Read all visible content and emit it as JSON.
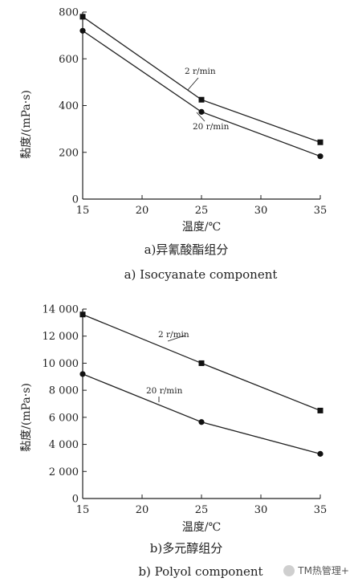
{
  "watermark": "TM热管理+",
  "chart_data": [
    {
      "type": "line",
      "xlabel": "温度/℃",
      "ylabel": "黏度/(mPa·s)",
      "xlim": [
        15,
        35
      ],
      "ylim": [
        0,
        800
      ],
      "xticks": [
        15,
        20,
        25,
        30,
        35
      ],
      "yticks": [
        0,
        200,
        400,
        600,
        800
      ],
      "xtick_labels": [
        "15",
        "20",
        "25",
        "30",
        "35"
      ],
      "ytick_labels": [
        "0",
        "200",
        "400",
        "600",
        "800"
      ],
      "series": [
        {
          "name": "2 r/min",
          "marker": "square",
          "x": [
            15,
            25,
            35
          ],
          "y": [
            780,
            425,
            243
          ]
        },
        {
          "name": "20 r/min",
          "marker": "circle",
          "x": [
            15,
            25,
            35
          ],
          "y": [
            720,
            373,
            183
          ]
        }
      ],
      "caption_zh": "a)异氰酸酯组分",
      "caption_en": "a) Isocyanate component",
      "grid": false
    },
    {
      "type": "line",
      "xlabel": "温度/℃",
      "ylabel": "黏度/(mPa·s)",
      "xlim": [
        15,
        35
      ],
      "ylim": [
        0,
        14000
      ],
      "xticks": [
        15,
        20,
        25,
        30,
        35
      ],
      "yticks": [
        0,
        2000,
        4000,
        6000,
        8000,
        10000,
        12000,
        14000
      ],
      "xtick_labels": [
        "15",
        "20",
        "25",
        "30",
        "35"
      ],
      "ytick_labels": [
        "0",
        "2 000",
        "4 000",
        "6 000",
        "8 000",
        "10 000",
        "12 000",
        "14 000"
      ],
      "series": [
        {
          "name": "2 r/min",
          "marker": "square",
          "x": [
            15,
            25,
            35
          ],
          "y": [
            13600,
            10000,
            6500
          ]
        },
        {
          "name": "20 r/min",
          "marker": "circle",
          "x": [
            15,
            25,
            35
          ],
          "y": [
            9200,
            5650,
            3300
          ]
        }
      ],
      "caption_zh": "b)多元醇组分",
      "caption_en": "b) Polyol component",
      "grid": false
    }
  ]
}
